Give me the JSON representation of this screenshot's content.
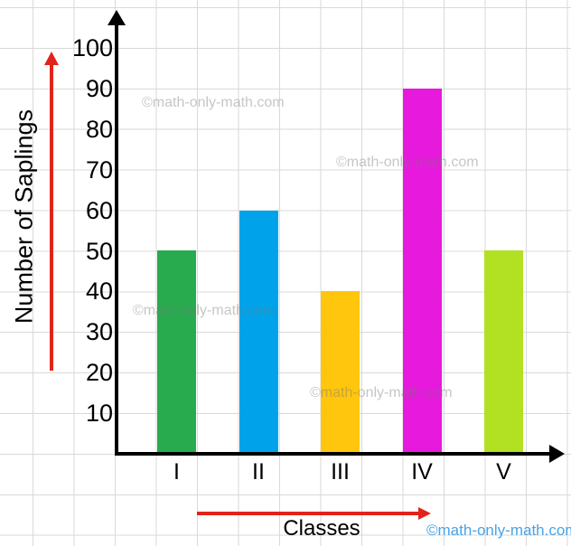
{
  "chart_data": {
    "type": "bar",
    "categories": [
      "I",
      "II",
      "III",
      "IV",
      "V"
    ],
    "values": [
      50,
      60,
      40,
      90,
      50
    ],
    "bar_colors": [
      "#28ab4f",
      "#00a3e9",
      "#ffc60d",
      "#e619dc",
      "#b2e022"
    ],
    "title": "",
    "xlabel": "Classes",
    "ylabel": "Number of Saplings",
    "yticks": [
      10,
      20,
      30,
      40,
      50,
      60,
      70,
      80,
      90,
      100
    ],
    "ylim": [
      0,
      100
    ],
    "grid": true,
    "legend": "none"
  },
  "watermarks": {
    "gray_text": "©math-only-math.com",
    "brand_text": "©math-only-math.com",
    "brand_color": "#49a3e8"
  },
  "colors": {
    "axis": "#000000",
    "guide_arrows": "#e2231b",
    "gridline": "#d9d9d9",
    "background": "#ffffff"
  }
}
